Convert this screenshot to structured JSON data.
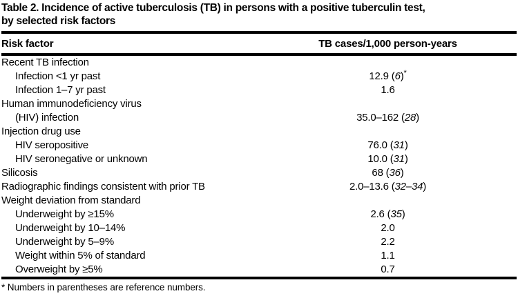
{
  "table": {
    "title_line1": "Table 2. Incidence of active tuberculosis (TB) in persons with a positive tuberculin test,",
    "title_line2": "by selected risk factors",
    "columns": [
      "Risk factor",
      "TB cases/1,000 person-years"
    ],
    "rows": [
      {
        "label": "Recent TB infection",
        "indent": 0,
        "value": "",
        "ref": "",
        "marker": ""
      },
      {
        "label": "Infection <1 yr past",
        "indent": 1,
        "value": "12.9",
        "ref": "6",
        "marker": "*"
      },
      {
        "label": "Infection 1–7 yr past",
        "indent": 1,
        "value": "1.6",
        "ref": "",
        "marker": ""
      },
      {
        "label": "Human immunodeficiency virus",
        "indent": 0,
        "value": "",
        "ref": "",
        "marker": ""
      },
      {
        "label": "(HIV) infection",
        "indent": 1,
        "value": "35.0–162",
        "ref": "28",
        "marker": ""
      },
      {
        "label": "Injection drug use",
        "indent": 0,
        "value": "",
        "ref": "",
        "marker": ""
      },
      {
        "label": "HIV seropositive",
        "indent": 1,
        "value": "76.0",
        "ref": "31",
        "marker": ""
      },
      {
        "label": "HIV seronegative or unknown",
        "indent": 1,
        "value": "10.0",
        "ref": "31",
        "marker": ""
      },
      {
        "label": "Silicosis",
        "indent": 0,
        "value": "68",
        "ref": "36",
        "marker": ""
      },
      {
        "label": "Radiographic findings consistent with prior TB",
        "indent": 0,
        "value": "2.0–13.6",
        "ref": "32–34",
        "marker": ""
      },
      {
        "label": "Weight deviation from standard",
        "indent": 0,
        "value": "",
        "ref": "",
        "marker": ""
      },
      {
        "label": "Underweight by ≥15%",
        "indent": 1,
        "value": "2.6",
        "ref": "35",
        "marker": ""
      },
      {
        "label": "Underweight by 10–14%",
        "indent": 1,
        "value": "2.0",
        "ref": "",
        "marker": ""
      },
      {
        "label": "Underweight by 5–9%",
        "indent": 1,
        "value": "2.2",
        "ref": "",
        "marker": ""
      },
      {
        "label": "Weight within 5% of standard",
        "indent": 1,
        "value": "1.1",
        "ref": "",
        "marker": ""
      },
      {
        "label": "Overweight by ≥5%",
        "indent": 1,
        "value": "0.7",
        "ref": "",
        "marker": ""
      }
    ],
    "footnote": "* Numbers in parentheses are reference numbers."
  }
}
